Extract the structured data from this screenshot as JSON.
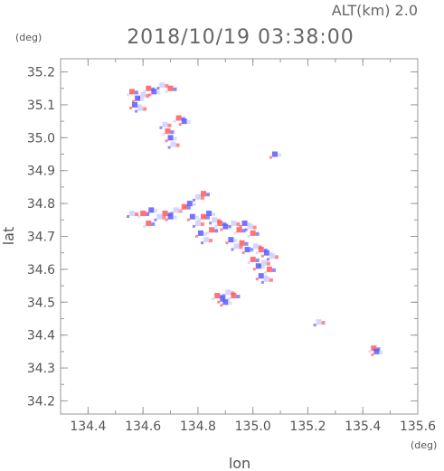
{
  "header": {
    "altitude_label": "ALT(km) 2.0",
    "datetime": "2018/10/19 03:38:00"
  },
  "colors": {
    "axis": "#999999",
    "text": "#555555",
    "positive": "#ff5a5a",
    "negative": "#5a5aff",
    "neutral": "#cfcfff"
  },
  "chart_data": {
    "type": "scatter",
    "xlabel": "lon",
    "ylabel": "lat",
    "xunit": "(deg)",
    "yunit": "(deg)",
    "xlim": [
      134.3,
      135.6
    ],
    "ylim": [
      34.16,
      35.24
    ],
    "xticks": [
      "134.4",
      "134.6",
      "134.8",
      "135.0",
      "135.2",
      "135.4",
      "135.6"
    ],
    "yticks": [
      "34.2",
      "34.3",
      "34.4",
      "34.5",
      "34.6",
      "34.7",
      "34.8",
      "34.9",
      "35.0",
      "35.1",
      "35.2"
    ],
    "series": [
      {
        "values": [
          {
            "x": 134.56,
            "y": 35.14
          },
          {
            "x": 134.58,
            "y": 35.12
          },
          {
            "x": 134.6,
            "y": 35.13
          },
          {
            "x": 134.62,
            "y": 35.15
          },
          {
            "x": 134.64,
            "y": 35.14
          },
          {
            "x": 134.67,
            "y": 35.16
          },
          {
            "x": 134.7,
            "y": 35.15
          },
          {
            "x": 134.57,
            "y": 35.1
          },
          {
            "x": 134.59,
            "y": 35.09
          },
          {
            "x": 134.73,
            "y": 35.06
          },
          {
            "x": 134.75,
            "y": 35.05
          },
          {
            "x": 134.68,
            "y": 35.04
          },
          {
            "x": 134.69,
            "y": 35.02
          },
          {
            "x": 134.7,
            "y": 35.0
          },
          {
            "x": 134.71,
            "y": 34.98
          },
          {
            "x": 134.6,
            "y": 34.77
          },
          {
            "x": 134.63,
            "y": 34.78
          },
          {
            "x": 134.66,
            "y": 34.76
          },
          {
            "x": 134.68,
            "y": 34.77
          },
          {
            "x": 134.7,
            "y": 34.76
          },
          {
            "x": 134.72,
            "y": 34.78
          },
          {
            "x": 134.75,
            "y": 34.79
          },
          {
            "x": 134.77,
            "y": 34.8
          },
          {
            "x": 134.8,
            "y": 34.82
          },
          {
            "x": 134.82,
            "y": 34.83
          },
          {
            "x": 134.78,
            "y": 34.76
          },
          {
            "x": 134.8,
            "y": 34.74
          },
          {
            "x": 134.82,
            "y": 34.76
          },
          {
            "x": 134.84,
            "y": 34.77
          },
          {
            "x": 134.86,
            "y": 34.75
          },
          {
            "x": 134.88,
            "y": 34.74
          },
          {
            "x": 134.81,
            "y": 34.71
          },
          {
            "x": 134.83,
            "y": 34.69
          },
          {
            "x": 134.85,
            "y": 34.72
          },
          {
            "x": 134.9,
            "y": 34.73
          },
          {
            "x": 134.93,
            "y": 34.74
          },
          {
            "x": 134.95,
            "y": 34.72
          },
          {
            "x": 134.97,
            "y": 34.74
          },
          {
            "x": 134.99,
            "y": 34.73
          },
          {
            "x": 135.0,
            "y": 34.71
          },
          {
            "x": 134.92,
            "y": 34.69
          },
          {
            "x": 134.94,
            "y": 34.67
          },
          {
            "x": 134.96,
            "y": 34.68
          },
          {
            "x": 134.98,
            "y": 34.66
          },
          {
            "x": 135.01,
            "y": 34.67
          },
          {
            "x": 135.03,
            "y": 34.66
          },
          {
            "x": 135.05,
            "y": 34.65
          },
          {
            "x": 135.07,
            "y": 34.64
          },
          {
            "x": 135.0,
            "y": 34.63
          },
          {
            "x": 135.02,
            "y": 34.61
          },
          {
            "x": 135.04,
            "y": 34.62
          },
          {
            "x": 135.06,
            "y": 34.6
          },
          {
            "x": 135.03,
            "y": 34.58
          },
          {
            "x": 135.05,
            "y": 34.57
          },
          {
            "x": 134.87,
            "y": 34.52
          },
          {
            "x": 134.89,
            "y": 34.51
          },
          {
            "x": 134.91,
            "y": 34.53
          },
          {
            "x": 134.93,
            "y": 34.52
          },
          {
            "x": 134.9,
            "y": 34.5
          },
          {
            "x": 135.24,
            "y": 34.44
          },
          {
            "x": 135.44,
            "y": 34.36
          },
          {
            "x": 135.45,
            "y": 34.35
          },
          {
            "x": 134.56,
            "y": 34.77
          },
          {
            "x": 134.62,
            "y": 34.74
          },
          {
            "x": 135.08,
            "y": 34.95
          }
        ]
      }
    ]
  }
}
